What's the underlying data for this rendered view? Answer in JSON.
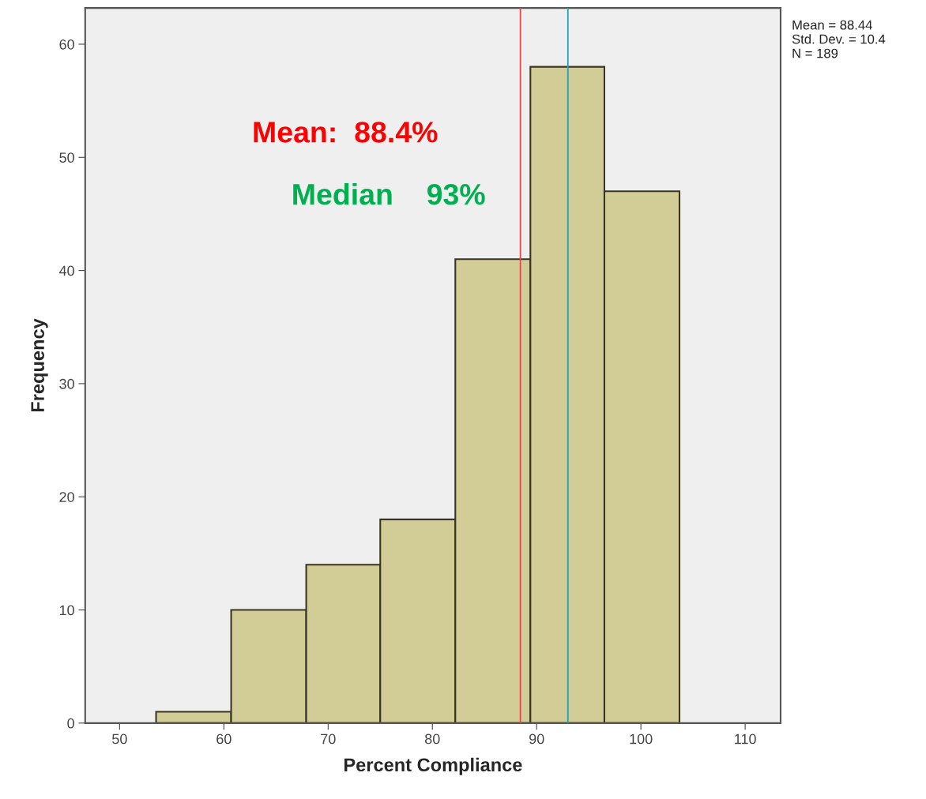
{
  "chart_data": {
    "type": "histogram",
    "xlabel": "Percent Compliance",
    "ylabel": "Frequency",
    "bins": [
      53.5,
      60.7,
      67.9,
      75.0,
      82.2,
      89.4,
      96.5,
      103.7
    ],
    "values": [
      1,
      10,
      14,
      18,
      41,
      58,
      47
    ],
    "color": "#d2cc96",
    "xlim": [
      46.7,
      113.4
    ],
    "xticks": [
      50,
      60,
      70,
      80,
      90,
      100,
      110
    ],
    "ylim": [
      0,
      63.2
    ],
    "yticks": [
      0,
      10,
      20,
      30,
      40,
      50,
      60
    ],
    "grid": false,
    "ref_lines": [
      {
        "axis": "x",
        "value": 88.44,
        "color": "#e8474c"
      },
      {
        "axis": "x",
        "value": 93,
        "color": "#2a9fb0"
      }
    ],
    "annotations": [
      {
        "text": "Mean:  88.4%",
        "x": 88.44,
        "y": 52
      },
      {
        "text": "Median    93%",
        "x": 93,
        "y": 46.5
      },
      "Mean = 88.44\nStd. Dev. = 10.4\nN = 189"
    ]
  }
}
